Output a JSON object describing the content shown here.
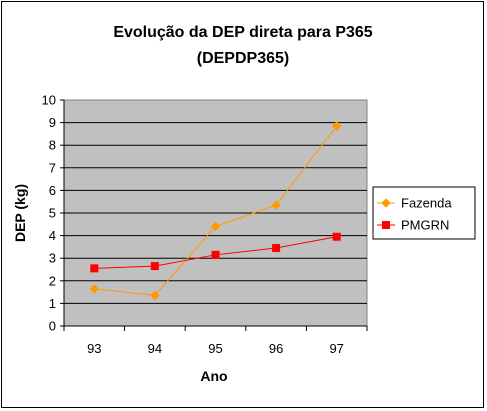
{
  "chart_data": {
    "type": "line",
    "title": "Evolução da DEP direta para P365",
    "subtitle": "(DEPDP365)",
    "xlabel": "Ano",
    "ylabel": "DEP (kg)",
    "categories": [
      "93",
      "94",
      "95",
      "96",
      "97"
    ],
    "ylim": [
      0,
      10
    ],
    "yticks": [
      0,
      1,
      2,
      3,
      4,
      5,
      6,
      7,
      8,
      9,
      10
    ],
    "grid": true,
    "legend": "right",
    "series": [
      {
        "name": "Fazenda",
        "values": [
          1.65,
          1.35,
          4.4,
          5.35,
          8.85
        ],
        "color": "#FF9900",
        "marker": "diamond"
      },
      {
        "name": "PMGRN",
        "values": [
          2.55,
          2.65,
          3.15,
          3.45,
          3.95
        ],
        "color": "#FF0000",
        "marker": "square"
      }
    ],
    "plot_background": "#C0C0C0"
  }
}
